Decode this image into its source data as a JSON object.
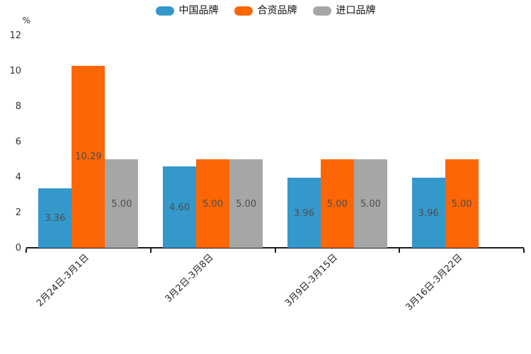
{
  "chart_data": {
    "type": "bar",
    "title": "",
    "ylabel": "%",
    "xlabel": "",
    "ylim": [
      0,
      12
    ],
    "yticks": [
      0,
      2,
      4,
      6,
      8,
      10,
      12
    ],
    "grid": false,
    "legend_position": "top-center",
    "categories": [
      "2月24日-3月1日",
      "3月2日-3月8日",
      "3月9日-3月15日",
      "3月16日-3月22日"
    ],
    "series": [
      {
        "name": "中国品牌",
        "color": "#3498CB",
        "values": [
          3.36,
          4.6,
          3.96,
          3.96
        ],
        "labels": [
          "3.36",
          "4.60",
          "3.96",
          "3.96"
        ]
      },
      {
        "name": "合资品牌",
        "color": "#FC6604",
        "values": [
          10.29,
          5,
          5,
          5
        ],
        "labels": [
          "10.29",
          "5.00",
          "5.00",
          "5.00"
        ]
      },
      {
        "name": "进口品牌",
        "color": "#A6A6A6",
        "values": [
          5,
          5,
          5,
          null
        ],
        "labels": [
          "5.00",
          "5.00",
          "5.00",
          null
        ]
      }
    ],
    "value_label_color": "#4D4D4D",
    "axis_color": "#1A1A1A"
  }
}
